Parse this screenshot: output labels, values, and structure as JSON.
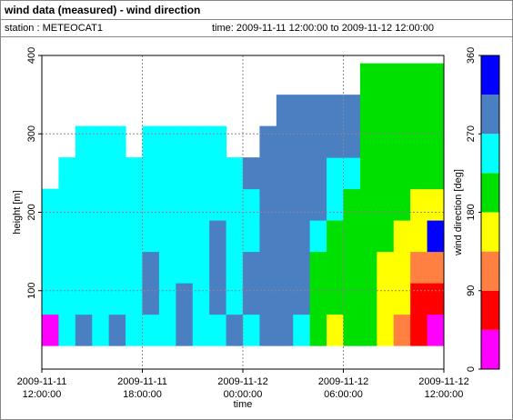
{
  "chart_data": {
    "type": "heatmap",
    "title": "wind data (measured) - wind direction",
    "station": "station : METEOCAT1",
    "period": "time: 2009-11-11 12:00:00 to 2009-11-12 12:00:00",
    "xlabel": "time",
    "ylabel": "height [m]",
    "colorbar_label": "wind direction [deg]",
    "xlim": [
      "2009-11-11 12:00:00",
      "2009-11-12 12:00:00"
    ],
    "xticks": [
      "2009-11-11 12:00:00",
      "2009-11-11 18:00:00",
      "2009-11-12 00:00:00",
      "2009-11-12 06:00:00",
      "2009-11-12 12:00:00"
    ],
    "ylim": [
      0,
      400
    ],
    "yticks": [
      100,
      200,
      300,
      400
    ],
    "grid": true,
    "clim": [
      0,
      360
    ],
    "cticks": [
      0,
      90,
      180,
      270,
      360
    ],
    "colors": [
      "#ff00ff",
      "#ff0000",
      "#ff8040",
      "#ffff00",
      "#00e000",
      "#00ffff",
      "#4a7fc1",
      "#0000ff"
    ],
    "height_bins": [
      30,
      70,
      110,
      150,
      190,
      230,
      270,
      310,
      350,
      390
    ],
    "x": [
      "2009-11-11 12:00:00",
      "2009-11-11 13:00:00",
      "2009-11-11 14:00:00",
      "2009-11-11 15:00:00",
      "2009-11-11 16:00:00",
      "2009-11-11 17:00:00",
      "2009-11-11 18:00:00",
      "2009-11-11 19:00:00",
      "2009-11-11 20:00:00",
      "2009-11-11 21:00:00",
      "2009-11-11 22:00:00",
      "2009-11-11 23:00:00",
      "2009-11-12 00:00:00",
      "2009-11-12 01:00:00",
      "2009-11-12 02:00:00",
      "2009-11-12 03:00:00",
      "2009-11-12 04:00:00",
      "2009-11-12 05:00:00",
      "2009-11-12 06:00:00",
      "2009-11-12 07:00:00",
      "2009-11-12 08:00:00",
      "2009-11-12 09:00:00",
      "2009-11-12 10:00:00",
      "2009-11-12 11:00:00"
    ],
    "values": [
      [
        20,
        250,
        250,
        250,
        250,
        null,
        null,
        null,
        null
      ],
      [
        250,
        250,
        250,
        250,
        250,
        250,
        null,
        null,
        null
      ],
      [
        290,
        250,
        250,
        250,
        250,
        250,
        250,
        null,
        null
      ],
      [
        250,
        250,
        250,
        250,
        250,
        250,
        250,
        null,
        null
      ],
      [
        290,
        250,
        250,
        250,
        250,
        250,
        250,
        null,
        null
      ],
      [
        250,
        250,
        250,
        250,
        250,
        250,
        null,
        null,
        null
      ],
      [
        250,
        290,
        290,
        250,
        250,
        250,
        250,
        null,
        null
      ],
      [
        250,
        250,
        250,
        250,
        250,
        250,
        250,
        null,
        null
      ],
      [
        290,
        290,
        250,
        250,
        250,
        250,
        250,
        null,
        null
      ],
      [
        250,
        250,
        250,
        250,
        250,
        250,
        250,
        null,
        null
      ],
      [
        250,
        290,
        290,
        290,
        250,
        250,
        250,
        null,
        null
      ],
      [
        290,
        250,
        250,
        250,
        250,
        250,
        null,
        null,
        null
      ],
      [
        250,
        290,
        290,
        250,
        250,
        290,
        null,
        null,
        null
      ],
      [
        290,
        290,
        290,
        290,
        290,
        290,
        290,
        null,
        null
      ],
      [
        290,
        290,
        290,
        290,
        290,
        290,
        290,
        290,
        null
      ],
      [
        250,
        290,
        290,
        290,
        290,
        290,
        290,
        290,
        null
      ],
      [
        200,
        200,
        200,
        250,
        290,
        290,
        290,
        290,
        null
      ],
      [
        160,
        200,
        200,
        200,
        250,
        250,
        290,
        290,
        null
      ],
      [
        200,
        200,
        200,
        200,
        200,
        250,
        290,
        290,
        null
      ],
      [
        200,
        200,
        200,
        200,
        200,
        200,
        200,
        200,
        200
      ],
      [
        160,
        160,
        160,
        200,
        200,
        200,
        200,
        200,
        200
      ],
      [
        110,
        160,
        160,
        160,
        200,
        200,
        200,
        200,
        200
      ],
      [
        70,
        70,
        110,
        160,
        160,
        200,
        200,
        200,
        200
      ],
      [
        20,
        70,
        110,
        330,
        160,
        200,
        200,
        200,
        200
      ]
    ]
  }
}
